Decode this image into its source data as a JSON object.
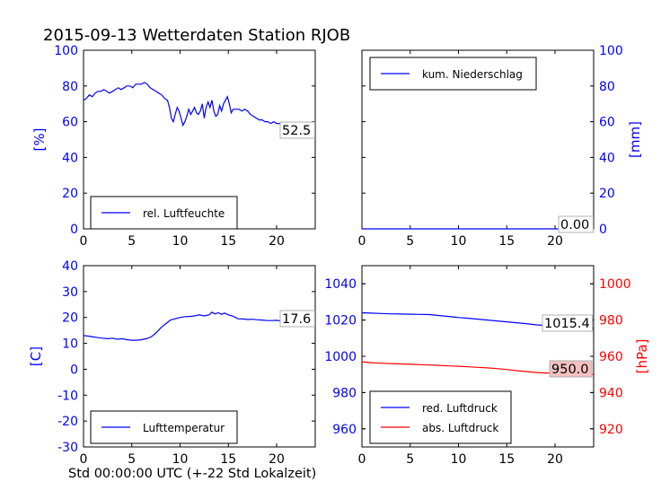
{
  "title": "2015-09-13 Wetterdaten Station RJOB",
  "xlabel": "Std 00:00:00 UTC (+-22 Std Lokalzeit)",
  "colors": {
    "blue": "#0000ff",
    "red": "#ff0000",
    "axis": "#000000",
    "label_box_red": "#f4c0c0"
  },
  "chart_data": [
    {
      "id": "humidity",
      "type": "line",
      "xlim": [
        0,
        24
      ],
      "ylim": [
        0,
        100
      ],
      "xticks": [
        0,
        5,
        10,
        15,
        20
      ],
      "yticks": [
        0,
        20,
        40,
        60,
        80,
        100
      ],
      "ylabel": "[%]",
      "last_value_label": "52.5",
      "series": [
        {
          "name": "rel. Luftfeuchte",
          "color": "#0000ff",
          "x": [
            0,
            0.3,
            0.6,
            0.9,
            1.2,
            1.5,
            1.8,
            2.1,
            2.4,
            2.7,
            3.0,
            3.3,
            3.6,
            3.9,
            4.2,
            4.5,
            4.8,
            5.1,
            5.4,
            5.7,
            6.0,
            6.3,
            6.6,
            6.9,
            7.2,
            7.5,
            7.8,
            8.1,
            8.4,
            8.7,
            8.9,
            9.1,
            9.3,
            9.5,
            9.7,
            9.9,
            10.1,
            10.3,
            10.5,
            10.7,
            10.9,
            11.1,
            11.3,
            11.5,
            11.7,
            11.9,
            12.1,
            12.3,
            12.5,
            12.7,
            12.9,
            13.1,
            13.3,
            13.5,
            13.7,
            13.9,
            14.1,
            14.3,
            14.5,
            14.7,
            14.9,
            15.1,
            15.3,
            15.5,
            15.8,
            16.1,
            16.4,
            16.7,
            17.0,
            17.3,
            17.6,
            17.9,
            18.2,
            18.5,
            18.8,
            19.1,
            19.4,
            19.7,
            20.0,
            20.3,
            20.6,
            20.9,
            21.2,
            21.5,
            21.8,
            22.1,
            22.4,
            22.7,
            23.0,
            23.3,
            23.6,
            24.0
          ],
          "y": [
            72,
            73,
            75,
            74,
            76,
            77,
            77,
            78,
            77,
            76,
            77,
            78,
            79,
            78,
            79,
            80,
            80,
            79,
            81,
            81,
            81,
            82,
            81,
            79,
            78,
            77,
            76,
            75,
            73,
            72,
            68,
            62,
            60,
            64,
            68,
            66,
            62,
            58,
            60,
            63,
            67,
            64,
            66,
            68,
            65,
            64,
            66,
            70,
            62,
            68,
            71,
            68,
            72,
            66,
            63,
            64,
            69,
            66,
            70,
            72,
            74,
            70,
            65,
            67,
            67,
            67,
            66,
            67,
            66,
            64,
            63,
            62,
            61,
            61,
            60,
            60,
            59,
            60,
            59,
            59,
            58,
            59,
            57,
            58,
            57,
            58,
            55,
            55,
            54,
            54,
            53,
            52.5
          ]
        }
      ]
    },
    {
      "id": "precip",
      "type": "line",
      "xlim": [
        0,
        24
      ],
      "ylim": [
        0,
        100
      ],
      "xticks": [
        0,
        5,
        10,
        15,
        20
      ],
      "yticks": [
        0,
        20,
        40,
        60,
        80,
        100
      ],
      "ylabel": "[mm]",
      "last_value_label": "0.00",
      "series": [
        {
          "name": "kum. Niederschlag",
          "color": "#0000ff",
          "x": [
            0,
            24
          ],
          "y": [
            0,
            0
          ]
        }
      ]
    },
    {
      "id": "temperature",
      "type": "line",
      "xlim": [
        0,
        24
      ],
      "ylim": [
        -30,
        40
      ],
      "xticks": [
        0,
        5,
        10,
        15,
        20
      ],
      "yticks": [
        -30,
        -20,
        -10,
        0,
        10,
        20,
        30,
        40
      ],
      "ylabel": "[C]",
      "last_value_label": "17.6",
      "series": [
        {
          "name": "Lufttemperatur",
          "color": "#0000ff",
          "x": [
            0,
            0.5,
            1,
            1.5,
            2,
            2.5,
            3,
            3.5,
            4,
            4.5,
            5,
            5.5,
            6,
            6.5,
            7,
            7.5,
            8,
            8.5,
            9,
            9.5,
            10,
            10.5,
            11,
            11.5,
            12,
            12.5,
            13,
            13.3,
            13.6,
            14,
            14.3,
            14.6,
            15,
            15.5,
            16,
            16.5,
            17,
            17.5,
            18,
            18.5,
            19,
            19.5,
            20,
            20.5,
            21,
            21.5,
            22,
            22.5,
            23,
            23.5,
            24
          ],
          "y": [
            13,
            12.8,
            12.5,
            12.2,
            12,
            11.8,
            12,
            11.6,
            11.8,
            11.4,
            11.2,
            11.2,
            11.4,
            11.8,
            12.5,
            14,
            16,
            17.5,
            19,
            19.5,
            20,
            20.3,
            20.4,
            20.6,
            21,
            20.6,
            21,
            22,
            21.4,
            21.8,
            21.2,
            21.7,
            21,
            20.5,
            19.5,
            19.4,
            19.2,
            19.3,
            19.1,
            19,
            18.8,
            18.8,
            18.9,
            18.6,
            18.5,
            18.3,
            18.1,
            17.9,
            17.8,
            17.7,
            17.6
          ]
        }
      ]
    },
    {
      "id": "pressure",
      "type": "line",
      "xlim": [
        0,
        24
      ],
      "ylim_left": [
        950,
        1050
      ],
      "ylim_right": [
        910,
        1010
      ],
      "xticks": [
        0,
        5,
        10,
        15,
        20
      ],
      "yticks_left": [
        960,
        980,
        1000,
        1020,
        1040
      ],
      "yticks_right": [
        920,
        940,
        960,
        980,
        1000
      ],
      "ylabel_right": "[hPa]",
      "last_value_labels": [
        "1015.4",
        "950.0"
      ],
      "series": [
        {
          "name": "red. Luftdruck",
          "color": "#0000ff",
          "axis": "left",
          "x": [
            0,
            1,
            2,
            3,
            4,
            5,
            6,
            7,
            8,
            9,
            10,
            11,
            12,
            13,
            14,
            15,
            16,
            17,
            18,
            19,
            20,
            21,
            22,
            23,
            24
          ],
          "y": [
            1024,
            1023.8,
            1023.6,
            1023.4,
            1023.3,
            1023.2,
            1023.1,
            1023,
            1022.5,
            1022,
            1021.4,
            1021,
            1020.5,
            1020,
            1019.5,
            1019,
            1018.5,
            1018,
            1017.4,
            1017,
            1017.2,
            1016.8,
            1016.2,
            1015.8,
            1015.4
          ]
        },
        {
          "name": "abs. Luftdruck",
          "color": "#ff0000",
          "axis": "right",
          "x": [
            0,
            1,
            2,
            3,
            4,
            5,
            6,
            7,
            8,
            9,
            10,
            11,
            12,
            13,
            14,
            15,
            16,
            17,
            18,
            19,
            20,
            21,
            22,
            23,
            24
          ],
          "y": [
            957,
            956.5,
            956.2,
            956,
            955.8,
            955.6,
            955.4,
            955.2,
            955,
            954.7,
            954.5,
            954.2,
            953.9,
            953.6,
            953.2,
            952.7,
            952.1,
            951.6,
            951.1,
            950.8,
            950.9,
            950.7,
            950.4,
            950.2,
            950.0
          ]
        }
      ]
    }
  ]
}
